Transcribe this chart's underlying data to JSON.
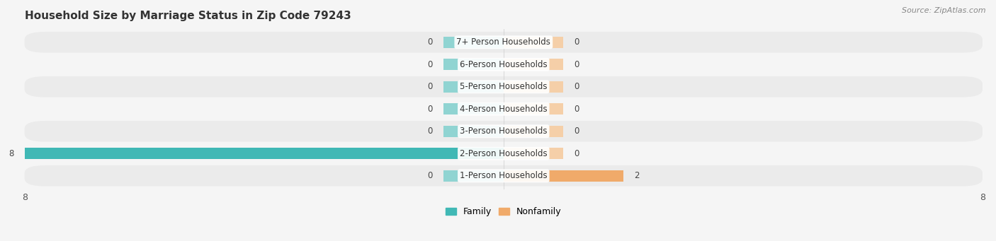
{
  "title": "Household Size by Marriage Status in Zip Code 79243",
  "source": "Source: ZipAtlas.com",
  "categories": [
    "7+ Person Households",
    "6-Person Households",
    "5-Person Households",
    "4-Person Households",
    "3-Person Households",
    "2-Person Households",
    "1-Person Households"
  ],
  "family_values": [
    0,
    0,
    0,
    0,
    0,
    8,
    0
  ],
  "nonfamily_values": [
    0,
    0,
    0,
    0,
    0,
    0,
    2
  ],
  "family_color": "#40b8b5",
  "nonfamily_color": "#f0aa6a",
  "family_stub_color": "#90d4d2",
  "nonfamily_stub_color": "#f5cfa8",
  "xlim": [
    -8,
    8
  ],
  "x_ticks": [
    -8,
    8
  ],
  "stub_size": 1.0,
  "bar_height": 0.52,
  "row_bg_even": "#ebebeb",
  "row_bg_odd": "#f5f5f5",
  "label_color": "#555555",
  "title_color": "#333333",
  "title_fontsize": 11,
  "background_color": "#f5f5f5",
  "value_fontsize": 8.5,
  "cat_fontsize": 8.5
}
